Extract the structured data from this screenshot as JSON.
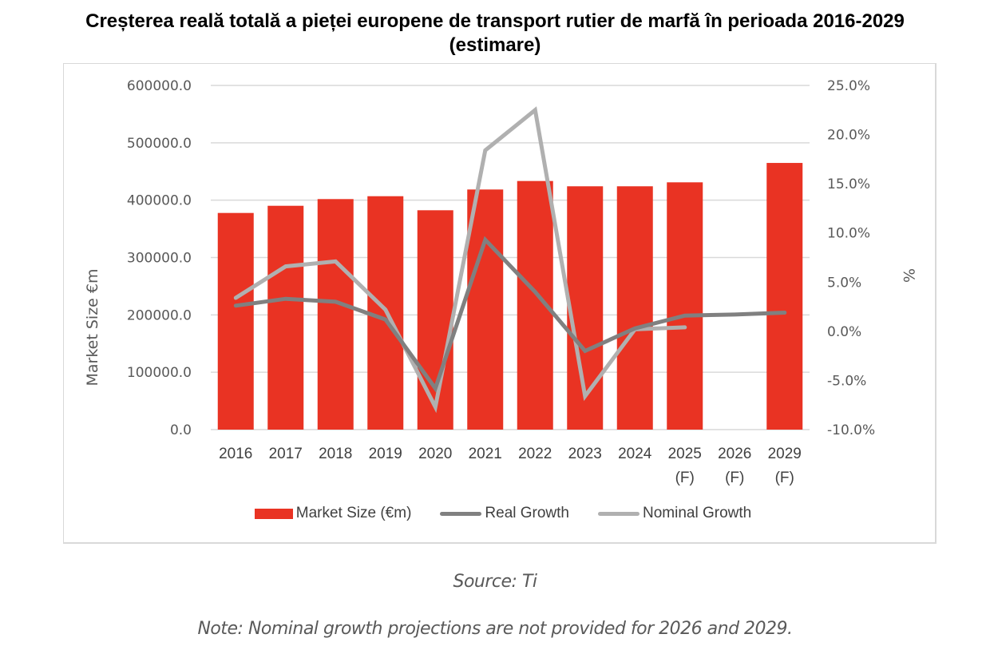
{
  "chart_data": {
    "type": "bar",
    "title": "Creșterea reală totală a pieței europene de transport rutier de marfă în perioada 2016-2029 (estimare)",
    "title_lines": [
      "Creșterea reală totală a pieței europene de transport rutier de marfă în perioada 2016-2029",
      "(estimare)"
    ],
    "categories": [
      [
        "2016"
      ],
      [
        "2017"
      ],
      [
        "2018"
      ],
      [
        "2019"
      ],
      [
        "2020"
      ],
      [
        "2021"
      ],
      [
        "2022"
      ],
      [
        "2023"
      ],
      [
        "2024"
      ],
      [
        "2025",
        "(F)"
      ],
      [
        "2026",
        "(F)"
      ],
      [
        "2029",
        "(F)"
      ]
    ],
    "ylabel": "Market Size €m",
    "y2label": "%",
    "ylim": [
      0,
      600000
    ],
    "y2lim": [
      -10,
      25
    ],
    "yticks": [
      "0.0",
      "100000.0",
      "200000.0",
      "300000.0",
      "400000.0",
      "500000.0",
      "600000.0"
    ],
    "ytick_values": [
      0,
      100000,
      200000,
      300000,
      400000,
      500000,
      600000
    ],
    "y2ticks": [
      "-10.0%",
      "-5.0%",
      "0.0%",
      "5.0%",
      "10.0%",
      "15.0%",
      "20.0%",
      "25.0%"
    ],
    "y2tick_values": [
      -10,
      -5,
      0,
      5,
      10,
      15,
      20,
      25
    ],
    "grid": true,
    "legend_position": "bottom",
    "series": [
      {
        "name": "Market Size (€m)",
        "type": "bar",
        "axis": "left",
        "color": "#e93323",
        "values": [
          377700,
          390200,
          401900,
          406900,
          382400,
          418600,
          433400,
          424200,
          424200,
          431100,
          null,
          464900
        ]
      },
      {
        "name": "Real Growth",
        "type": "line",
        "axis": "right",
        "color": "#808080",
        "values": [
          2.6,
          3.3,
          3.0,
          1.2,
          -5.8,
          9.3,
          4.0,
          -2.0,
          0.3,
          1.6,
          1.7,
          1.9
        ]
      },
      {
        "name": "Nominal Growth",
        "type": "line",
        "axis": "right",
        "color": "#b0b0b0",
        "values": [
          3.4,
          6.6,
          7.1,
          2.2,
          -7.7,
          18.4,
          22.5,
          -6.6,
          0.2,
          0.4,
          null,
          null
        ]
      }
    ]
  },
  "source": "Source: Ti",
  "note": "Note: Nominal growth projections are not provided for 2026 and 2029."
}
